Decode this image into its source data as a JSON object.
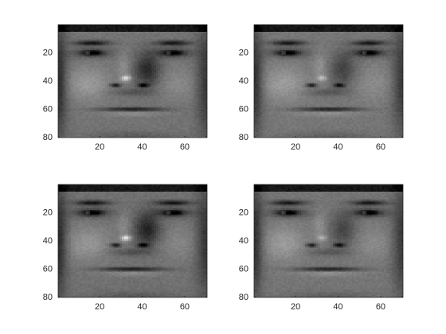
{
  "figure": {
    "background": "#ffffff"
  },
  "chart_data": [
    {
      "type": "heatmap",
      "image_subject": "grayscale face photo",
      "colormap": "gray",
      "xlim": [
        0.5,
        70.5
      ],
      "ylim": [
        80.5,
        0.5
      ],
      "y_direction": "reversed",
      "xticks": [
        20,
        40,
        60
      ],
      "yticks": [
        20,
        40,
        60,
        80
      ],
      "xlabel": "",
      "ylabel": "",
      "title": "",
      "grid": false,
      "variant": {
        "id": 0,
        "shadow": 0.85,
        "spec": 1.0,
        "bright": 1.0
      }
    },
    {
      "type": "heatmap",
      "image_subject": "grayscale face photo",
      "colormap": "gray",
      "xlim": [
        0.5,
        70.5
      ],
      "ylim": [
        80.5,
        0.5
      ],
      "y_direction": "reversed",
      "xticks": [
        20,
        40,
        60
      ],
      "yticks": [
        20,
        40,
        60,
        80
      ],
      "xlabel": "",
      "ylabel": "",
      "title": "",
      "grid": false,
      "variant": {
        "id": 1,
        "shadow": 0.6,
        "spec": 0.6,
        "bright": 1.03
      }
    },
    {
      "type": "heatmap",
      "image_subject": "grayscale face photo",
      "colormap": "gray",
      "xlim": [
        0.5,
        70.5
      ],
      "ylim": [
        80.5,
        0.5
      ],
      "y_direction": "reversed",
      "xticks": [
        20,
        40,
        60
      ],
      "yticks": [
        20,
        40,
        60,
        80
      ],
      "xlabel": "",
      "ylabel": "",
      "title": "",
      "grid": false,
      "variant": {
        "id": 2,
        "shadow": 0.9,
        "spec": 1.1,
        "bright": 0.98
      }
    },
    {
      "type": "heatmap",
      "image_subject": "grayscale face photo",
      "colormap": "gray",
      "xlim": [
        0.5,
        70.5
      ],
      "ylim": [
        80.5,
        0.5
      ],
      "y_direction": "reversed",
      "xticks": [
        20,
        40,
        60
      ],
      "yticks": [
        20,
        40,
        60,
        80
      ],
      "xlabel": "",
      "ylabel": "",
      "title": "",
      "grid": false,
      "variant": {
        "id": 3,
        "shadow": 0.55,
        "spec": 0.5,
        "bright": 1.02
      }
    }
  ]
}
